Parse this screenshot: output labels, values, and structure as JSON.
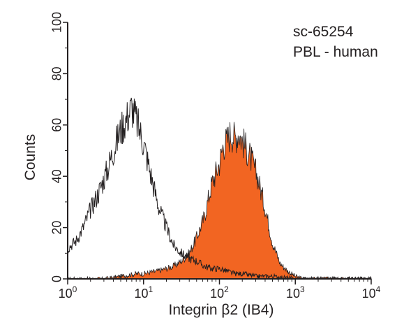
{
  "chart_data": {
    "type": "area",
    "xlabel": "Integrin β2 (IB4)",
    "ylabel": "Counts",
    "xscale": "log",
    "xlim": [
      1,
      10000
    ],
    "ylim": [
      0,
      100
    ],
    "x_ticks": [
      {
        "base": "10",
        "exp": "0",
        "value": 1
      },
      {
        "base": "10",
        "exp": "1",
        "value": 10
      },
      {
        "base": "10",
        "exp": "2",
        "value": 100
      },
      {
        "base": "10",
        "exp": "3",
        "value": 1000
      },
      {
        "base": "10",
        "exp": "4",
        "value": 10000
      }
    ],
    "y_ticks": [
      "0",
      "20",
      "40",
      "60",
      "80",
      "100"
    ],
    "grid": false,
    "annotations": [
      "sc-65254",
      "PBL - human"
    ],
    "series": [
      {
        "style": "outline",
        "color": "#231f20",
        "x": [
          1.0,
          1.3,
          1.6,
          2.0,
          2.5,
          3.2,
          4.0,
          5.0,
          6.3,
          7.0,
          8.0,
          10,
          12.6,
          15.8,
          20,
          25,
          31.6,
          40,
          50,
          63,
          80,
          100,
          126,
          158,
          200,
          300,
          500,
          1000,
          3000,
          10000
        ],
        "y": [
          12,
          15,
          20,
          27,
          33,
          41,
          50,
          58,
          64,
          67,
          62,
          53,
          40,
          28,
          20,
          13,
          10,
          8,
          7,
          5,
          4,
          4,
          3,
          2,
          2,
          1,
          1,
          0,
          0,
          0
        ]
      },
      {
        "style": "filled",
        "color": "#f26522",
        "x": [
          1.0,
          3.0,
          5.0,
          8.0,
          10,
          15,
          20,
          25,
          31.6,
          40,
          50,
          63,
          70,
          79,
          89,
          100,
          112,
          126,
          141,
          158,
          178,
          200,
          224,
          251,
          316,
          398,
          501,
          631,
          794,
          1000,
          1260,
          2000,
          10000
        ],
        "y": [
          0,
          0,
          1,
          2,
          2,
          3,
          4,
          5,
          7,
          10,
          16,
          24,
          30,
          37,
          41,
          45,
          52,
          54,
          57,
          55,
          57,
          54,
          51,
          48,
          40,
          28,
          14,
          6,
          3,
          1,
          0,
          0,
          0
        ]
      }
    ]
  }
}
